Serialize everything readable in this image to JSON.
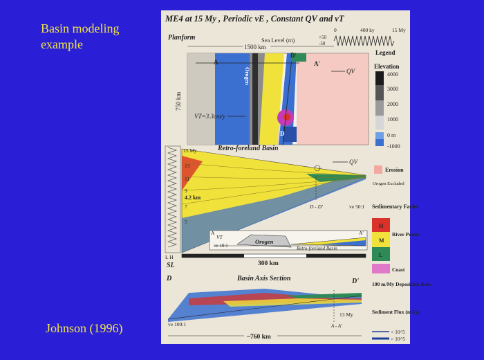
{
  "slide": {
    "title_line1": "Basin modeling",
    "title_line2": "example",
    "citation": "Johnson (1996)"
  },
  "figure": {
    "header": "ME4 at 15 My , Periodic  vE , Constant  QV  and  vT",
    "planform_label": "Planform",
    "sea_level_label": "Sea Level (m)",
    "sea_level_plus": "+50",
    "sea_level_minus": "-50",
    "time_ticks": [
      "0",
      "400 ky",
      "15 My"
    ],
    "width_label": "1500 km",
    "height_label": "750 km",
    "orogen_label": "Orogen",
    "vt_label": "VT=3.3cm/y",
    "qv_label": "QV",
    "points": [
      "A",
      "A'",
      "D",
      "D'"
    ],
    "legend_title": "Legend",
    "elevation_title": "Elevation",
    "elevation_ticks": [
      "4000",
      "3000",
      "2000",
      "1000",
      "0 m",
      "-1000"
    ],
    "erosion_label": "Erosion",
    "orogen_excluded": "Orogen Excluded",
    "retro_title": "Retro-foreland Basin",
    "age_labels": [
      "15 My",
      "13",
      "11",
      "9",
      "7",
      "5"
    ],
    "depth_label": "4.2 km",
    "dd_label": "D - D'",
    "ve_retro": "ve 50:1",
    "facies_title": "Sedimentary Facies",
    "facies_levels": [
      "H",
      "M",
      "L"
    ],
    "river_power": "River Power",
    "coast_label": "Coast",
    "inset_orogen": "Orogen",
    "inset_basin": "Retro-foreland Basin",
    "inset_ve": "ve 10:1",
    "inset_vt": "VT",
    "lh_label": "L  H",
    "sl_label": "SL",
    "scale_300": "300 km",
    "axis_title": "Basin Axis Section",
    "axis_d": "D",
    "axis_dprime": "D'",
    "axis_13my": "13 My",
    "axis_aa": "A - A'",
    "ve_axis": "ve 100:1",
    "scale_760": "~760 km",
    "deposition": "100 m/My Deposition Rate",
    "flux_title": "Sediment Flux (m3/y)",
    "flux_low": "< 10^5",
    "flux_high": "> 10^5",
    "colors": {
      "background": "#2a1fd6",
      "slide_text": "#f3e64a",
      "figure_bg": "#ece6d8",
      "yellow": "#f0e23a",
      "blue": "#3b6fd0",
      "red": "#d8322a",
      "green": "#2e8b57",
      "pink": "#f2a9a2"
    }
  }
}
